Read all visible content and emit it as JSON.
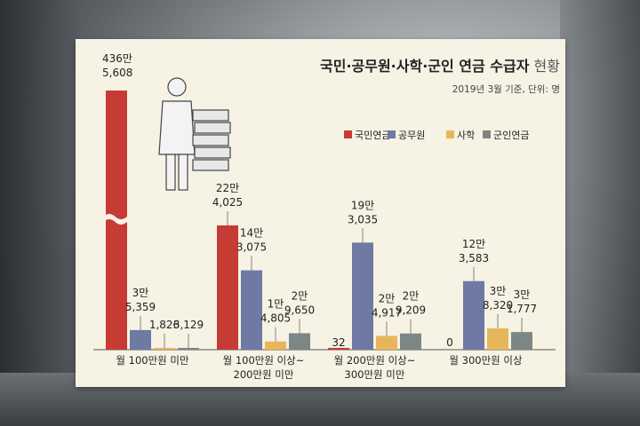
{
  "chart_data": {
    "type": "bar",
    "title_main": "국민·공무원·사학·군인 연금 수급자",
    "title_tail": "현황",
    "subtitle": "2019년 3월 기준, 단위: 명",
    "categories": [
      [
        "월 100만원 미만"
      ],
      [
        "월 100만원 이상~",
        "200만원 미만"
      ],
      [
        "월 200만원 이상~",
        "300만원 미만"
      ],
      [
        "월 300만원 이상"
      ]
    ],
    "series": [
      {
        "name": "국민연금",
        "color": "#c73b35",
        "values": [
          4365608,
          224025,
          32,
          0
        ],
        "labels": [
          [
            "436만",
            "5,608"
          ],
          [
            "22만",
            "4,025"
          ],
          [
            "32"
          ],
          [
            "0"
          ]
        ]
      },
      {
        "name": "공무원",
        "color": "#6e7aa3",
        "values": [
          35359,
          143075,
          193035,
          123583
        ],
        "labels": [
          [
            "3만",
            "5,359"
          ],
          [
            "14만",
            "3,075"
          ],
          [
            "19만",
            "3,035"
          ],
          [
            "12만",
            "3,583"
          ]
        ]
      },
      {
        "name": "사학",
        "color": "#e8b65a",
        "values": [
          1826,
          14805,
          24917,
          38320
        ],
        "labels": [
          [
            "1,826"
          ],
          [
            "1만",
            "4,805"
          ],
          [
            "2만",
            "4,917"
          ],
          [
            "3만",
            "8,320"
          ]
        ]
      },
      {
        "name": "군인연금",
        "color": "#7c8684",
        "values": [
          3129,
          29650,
          29209,
          31777
        ],
        "labels": [
          [
            "3,129"
          ],
          [
            "2만",
            "9,650"
          ],
          [
            "2만",
            "9,209"
          ],
          [
            "3만",
            "1,777"
          ]
        ]
      }
    ],
    "ylim": [
      0,
      240000
    ],
    "axis_break": true,
    "legend_position": "right"
  }
}
